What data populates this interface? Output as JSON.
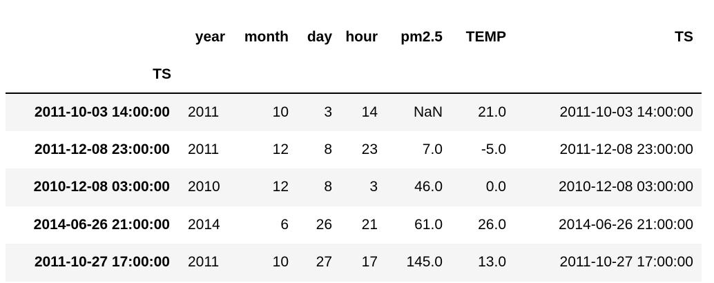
{
  "table": {
    "columns": [
      "year",
      "month",
      "day",
      "hour",
      "pm2.5",
      "TEMP",
      "TS"
    ],
    "index_name": "TS",
    "rows": [
      {
        "index": "2011-10-03 14:00:00",
        "cells": [
          "2011",
          "10",
          "3",
          "14",
          "NaN",
          "21.0",
          "2011-10-03 14:00:00"
        ]
      },
      {
        "index": "2011-12-08 23:00:00",
        "cells": [
          "2011",
          "12",
          "8",
          "23",
          "7.0",
          "-5.0",
          "2011-12-08 23:00:00"
        ]
      },
      {
        "index": "2010-12-08 03:00:00",
        "cells": [
          "2010",
          "12",
          "8",
          "3",
          "46.0",
          "0.0",
          "2010-12-08 03:00:00"
        ]
      },
      {
        "index": "2014-06-26 21:00:00",
        "cells": [
          "2014",
          "6",
          "26",
          "21",
          "61.0",
          "26.0",
          "2014-06-26 21:00:00"
        ]
      },
      {
        "index": "2011-10-27 17:00:00",
        "cells": [
          "2011",
          "10",
          "27",
          "17",
          "145.0",
          "13.0",
          "2011-10-27 17:00:00"
        ]
      }
    ]
  }
}
